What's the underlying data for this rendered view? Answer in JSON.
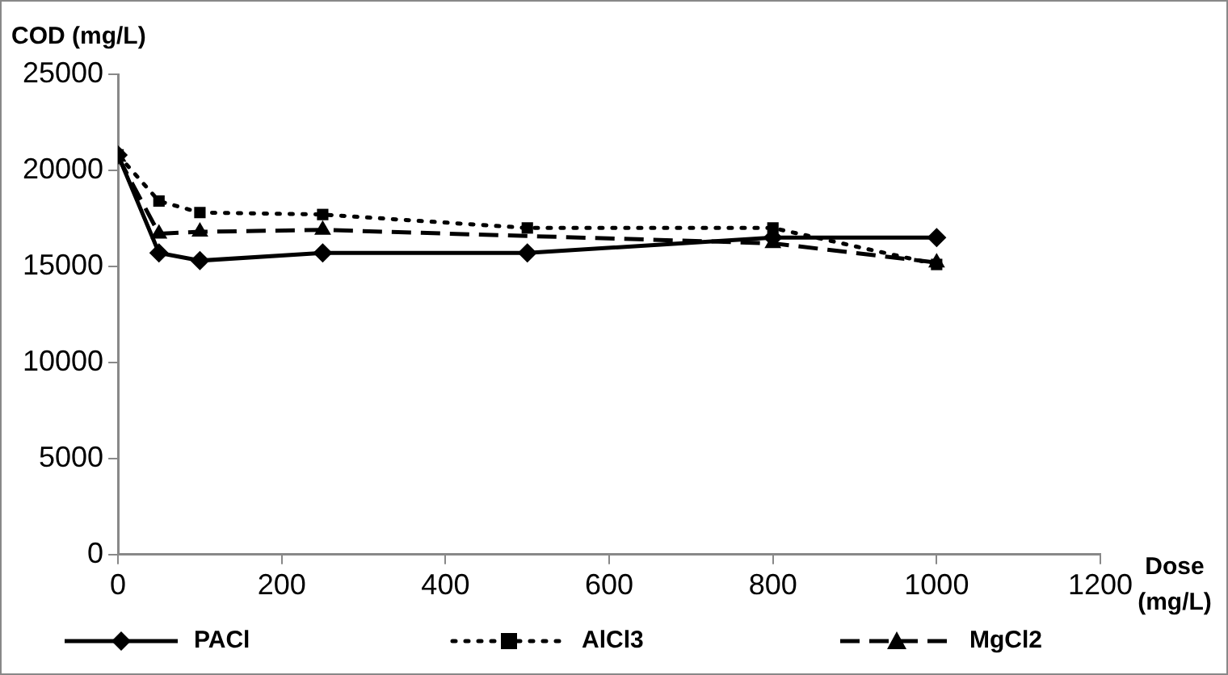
{
  "chart_data": {
    "type": "line",
    "xlabel": "Dose\n(mg/L)",
    "ylabel": "COD (mg/L)",
    "xlim": [
      0,
      1200
    ],
    "xticks": [
      0,
      200,
      400,
      600,
      800,
      1000,
      1200
    ],
    "ylim": [
      0,
      25000
    ],
    "yticks": [
      0,
      5000,
      10000,
      15000,
      20000,
      25000
    ],
    "grid": false,
    "legend": "bottom",
    "series": [
      {
        "name": "PACl",
        "color": "#000000",
        "marker": "diamond",
        "line_style": "solid",
        "x": [
          0,
          50,
          100,
          250,
          500,
          800,
          1000
        ],
        "values": [
          20800,
          15700,
          15300,
          15700,
          15700,
          16500,
          16500
        ]
      },
      {
        "name": "AlCl3",
        "color": "#000000",
        "marker": "square",
        "line_style": "dotted",
        "x": [
          0,
          50,
          100,
          250,
          500,
          800,
          1000
        ],
        "values": [
          20800,
          18400,
          17800,
          17700,
          17000,
          17000,
          15100
        ]
      },
      {
        "name": "MgCl2",
        "color": "#000000",
        "marker": "triangle",
        "line_style": "dashed",
        "x": [
          0,
          50,
          100,
          250,
          800,
          1000
        ],
        "values": [
          20700,
          16700,
          16800,
          16900,
          16200,
          15200
        ]
      }
    ]
  }
}
